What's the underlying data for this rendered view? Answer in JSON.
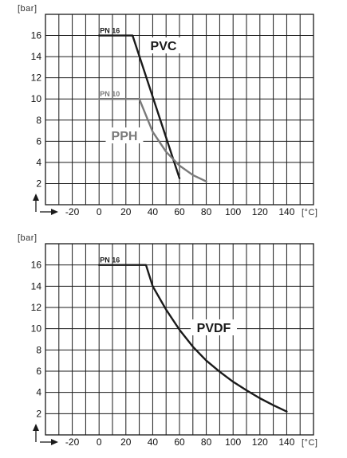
{
  "chart_data": [
    {
      "type": "line",
      "title": "",
      "ylabel": "[bar]",
      "xlabel": "[°C]",
      "xlim": [
        -40,
        160
      ],
      "ylim": [
        0,
        18
      ],
      "x_ticks": [
        "-20",
        "0",
        "20",
        "40",
        "60",
        "80",
        "100",
        "120",
        "140"
      ],
      "y_ticks": [
        "2",
        "4",
        "6",
        "8",
        "10",
        "12",
        "14",
        "16"
      ],
      "grid": true,
      "series": [
        {
          "name": "PVC",
          "pressure_label": "PN 16",
          "color": "#1a1a1a",
          "x": [
            0,
            25,
            60
          ],
          "y": [
            16,
            16,
            2.5
          ]
        },
        {
          "name": "PPH",
          "pressure_label": "PN 10",
          "color": "#7a7a7a",
          "x": [
            0,
            30,
            40,
            50,
            60,
            70,
            80
          ],
          "y": [
            10,
            10,
            6.9,
            5.0,
            3.7,
            2.8,
            2.2
          ]
        }
      ]
    },
    {
      "type": "line",
      "title": "",
      "ylabel": "[bar]",
      "xlabel": "[°C]",
      "xlim": [
        -40,
        160
      ],
      "ylim": [
        0,
        18
      ],
      "x_ticks": [
        "-20",
        "0",
        "20",
        "40",
        "60",
        "80",
        "100",
        "120",
        "140"
      ],
      "y_ticks": [
        "2",
        "4",
        "6",
        "8",
        "10",
        "12",
        "14",
        "16"
      ],
      "grid": true,
      "series": [
        {
          "name": "PVDF",
          "pressure_label": "PN 16",
          "color": "#1a1a1a",
          "x": [
            0,
            35,
            40,
            50,
            60,
            70,
            80,
            90,
            100,
            110,
            120,
            130,
            140
          ],
          "y": [
            16,
            16,
            14,
            11.8,
            9.9,
            8.3,
            7.0,
            5.95,
            5.0,
            4.2,
            3.45,
            2.8,
            2.2
          ]
        }
      ]
    }
  ]
}
